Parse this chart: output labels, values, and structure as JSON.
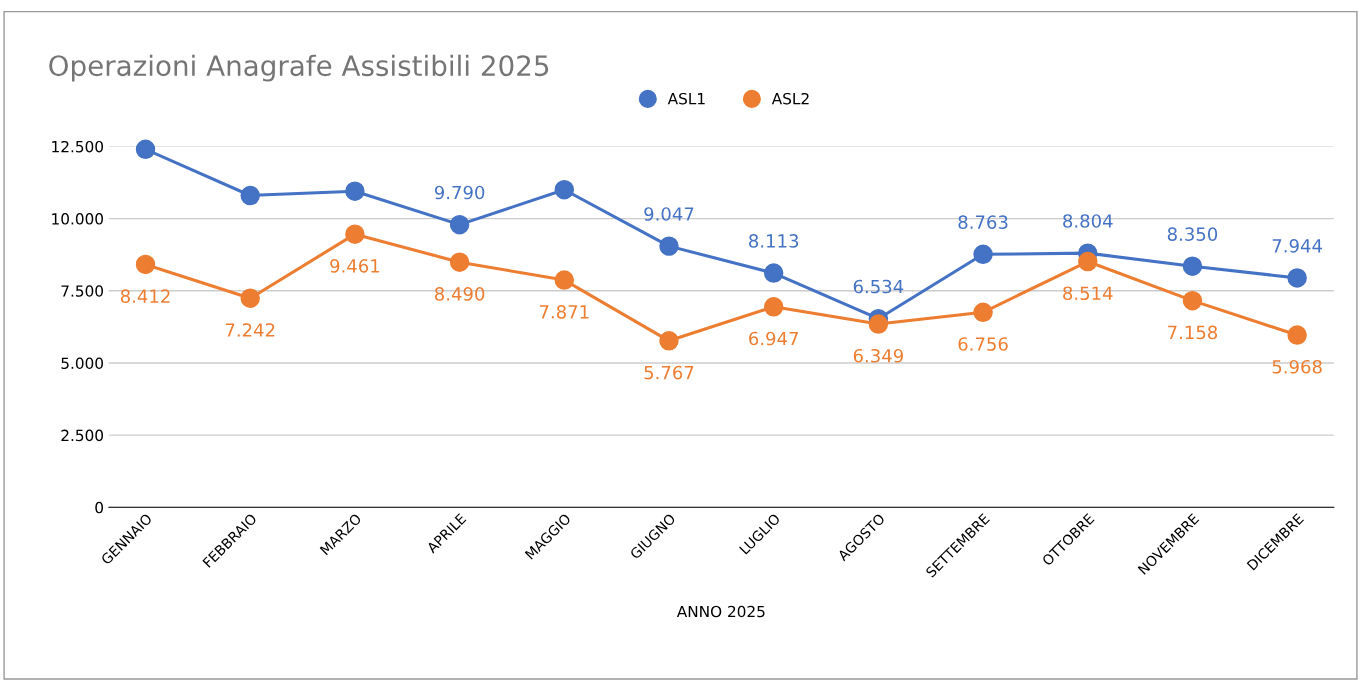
{
  "chart_data": {
    "type": "line",
    "title": "Operazioni Anagrafe Assistibili 2025",
    "xlabel": "ANNO 2025",
    "categories": [
      "GENNAIO",
      "FEBBRAIO",
      "MARZO",
      "APRILE",
      "MAGGIO",
      "GIUGNO",
      "LUGLIO",
      "AGOSTO",
      "SETTEMBRE",
      "OTTOBRE",
      "NOVEMBRE",
      "DICEMBRE"
    ],
    "series": [
      {
        "name": "ASL1",
        "color": "#4472c4",
        "values": [
          12400,
          10800,
          10950,
          9790,
          11000,
          9047,
          8113,
          6534,
          8763,
          8804,
          8350,
          7944
        ],
        "value_labels": [
          null,
          null,
          null,
          "9.790",
          null,
          "9.047",
          "8.113",
          "6.534",
          "8.763",
          "8.804",
          "8.350",
          "7.944"
        ]
      },
      {
        "name": "ASL2",
        "color": "#ed7d31",
        "values": [
          8412,
          7242,
          9461,
          8490,
          7871,
          5767,
          6947,
          6349,
          6756,
          8514,
          7158,
          5968
        ],
        "value_labels": [
          "8.412",
          "7.242",
          "9.461",
          "8.490",
          "7.871",
          "5.767",
          "6.947",
          "6.349",
          "6.756",
          "8.514",
          "7.158",
          "5.968"
        ]
      }
    ],
    "ylim": [
      0,
      12500
    ],
    "yticks": [
      {
        "value": 0,
        "label": "0"
      },
      {
        "value": 2500,
        "label": "2.500"
      },
      {
        "value": 5000,
        "label": "5.000"
      },
      {
        "value": 7500,
        "label": "7.500"
      },
      {
        "value": 10000,
        "label": "10.000"
      },
      {
        "value": 12500,
        "label": "12.500"
      }
    ],
    "grid": "y",
    "legend": "top",
    "marker": "circle",
    "line_style": "solid"
  }
}
